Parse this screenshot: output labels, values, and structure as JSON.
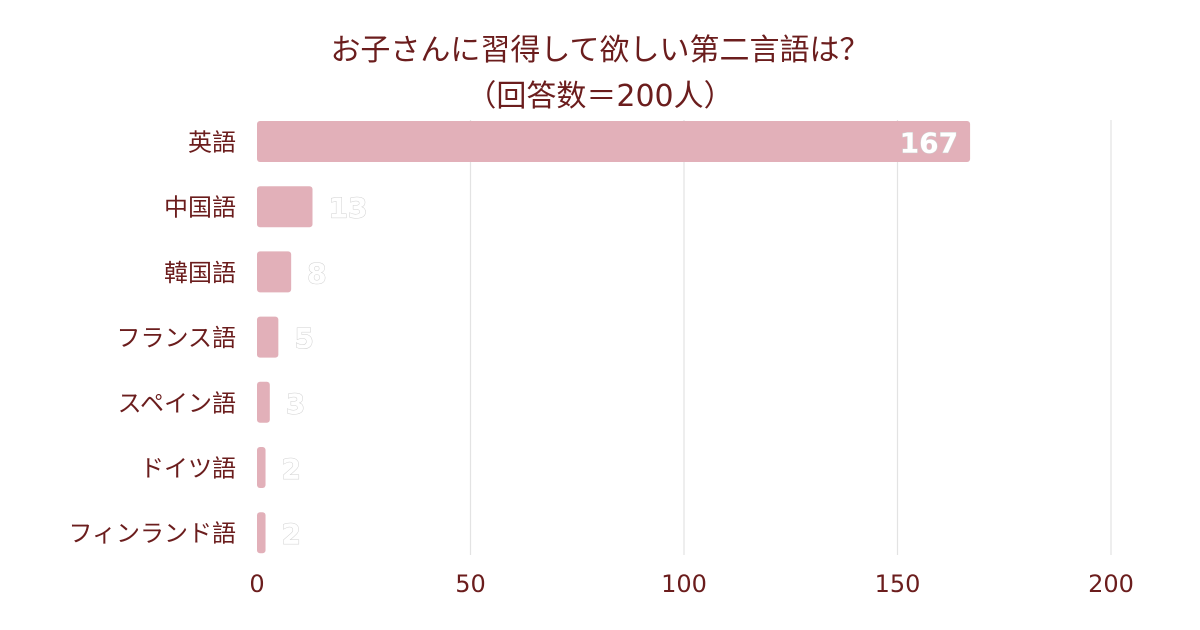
{
  "chart_data": {
    "type": "bar",
    "orientation": "horizontal",
    "title": "お子さんに習得して欲しい第二言語は？",
    "subtitle": "（回答数＝200人）",
    "categories": [
      "英語",
      "中国語",
      "韓国語",
      "フランス語",
      "スペイン語",
      "ドイツ語",
      "フィンランド語"
    ],
    "values": [
      167,
      13,
      8,
      5,
      3,
      2,
      2
    ],
    "xlim": [
      0,
      200
    ],
    "xticks": [
      0,
      50,
      100,
      150,
      200
    ],
    "xlabel": "",
    "ylabel": "",
    "grid": true,
    "legend": "none",
    "bar_color": "#e2b0b9",
    "text_color": "#6b1d1d",
    "grid_color": "#e3e3e3"
  }
}
